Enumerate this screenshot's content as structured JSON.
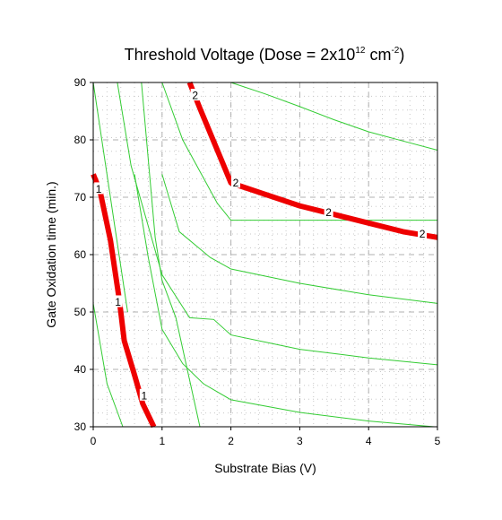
{
  "chart_data": {
    "type": "line",
    "subtype": "contour",
    "title": {
      "main": "Threshold Voltage (Dose = 2x10",
      "exp1": "12",
      "unit": " cm",
      "exp2": "-2",
      "close": ")"
    },
    "xlabel": "Substrate Bias (V)",
    "ylabel": "Gate Oxidation time (min.)",
    "xlim": [
      0,
      5
    ],
    "ylim": [
      30,
      90
    ],
    "xticks": [
      "0",
      "1",
      "2",
      "3",
      "4",
      "5"
    ],
    "yticks": [
      "30",
      "40",
      "50",
      "60",
      "70",
      "80",
      "90"
    ],
    "grid": "dotted",
    "colors": {
      "contour": "#33cc33",
      "highlight": "#ee0000",
      "grid": "#c8c8c8"
    },
    "contours": [
      {
        "x": [
          0,
          0.2,
          0.43
        ],
        "y": [
          51.5,
          37.5,
          30
        ]
      },
      {
        "x": [
          0.7,
          0.9,
          1.0,
          1.2,
          1.55
        ],
        "y": [
          90,
          63,
          55.5,
          49,
          30
        ]
      },
      {
        "x": [
          1.0,
          1.3,
          1.8,
          2.0,
          3.0,
          4.0,
          5.0
        ],
        "y": [
          90,
          80,
          69,
          66,
          66,
          66,
          66
        ]
      },
      {
        "x": [
          1.0,
          1.25,
          1.7,
          2.0,
          3.0,
          4.0,
          5.0
        ],
        "y": [
          74,
          64,
          59.5,
          57.5,
          55,
          53,
          51.5
        ]
      },
      {
        "x": [
          0.35,
          0.55,
          1.0,
          1.4,
          1.75,
          2.0,
          3.0,
          4.0,
          5.0
        ],
        "y": [
          90,
          75.5,
          56.5,
          49,
          48.7,
          46,
          43.5,
          42,
          40.8
        ]
      },
      {
        "x": [
          0.6,
          0.8,
          1.0,
          1.3,
          1.6,
          2.0,
          3.0,
          4.0,
          4.95
        ],
        "y": [
          74,
          59.5,
          47,
          41,
          37.5,
          34.7,
          32.5,
          31,
          30
        ]
      },
      {
        "x": [
          2.0,
          2.5,
          3.0,
          3.5,
          4.0,
          4.5,
          5.0
        ],
        "y": [
          90,
          88,
          85.8,
          83.5,
          81.4,
          79.8,
          78.2
        ]
      },
      {
        "x": [
          0.0,
          0.15,
          0.3,
          0.4,
          0.5
        ],
        "y": [
          90,
          78,
          66,
          58,
          50
        ]
      }
    ],
    "highlighted": [
      {
        "label": "1",
        "x": [
          0.0,
          0.1,
          0.25,
          0.38,
          0.45,
          0.6,
          0.72,
          0.88
        ],
        "y": [
          74,
          71,
          62.5,
          52,
          45,
          39,
          34,
          30
        ],
        "labels_at": [
          [
            0.08,
            71.5
          ],
          [
            0.36,
            51.8
          ],
          [
            0.74,
            35.5
          ]
        ]
      },
      {
        "label": "2",
        "x": [
          1.4,
          1.55,
          2.0,
          2.5,
          3.0,
          3.5,
          4.0,
          4.5,
          5.0
        ],
        "y": [
          90,
          85.5,
          72.5,
          70.5,
          68.5,
          67,
          65.5,
          64,
          63
        ],
        "labels_at": [
          [
            1.48,
            87.8
          ],
          [
            2.07,
            72.6
          ],
          [
            3.42,
            67.4
          ],
          [
            4.78,
            63.7
          ]
        ]
      }
    ]
  }
}
